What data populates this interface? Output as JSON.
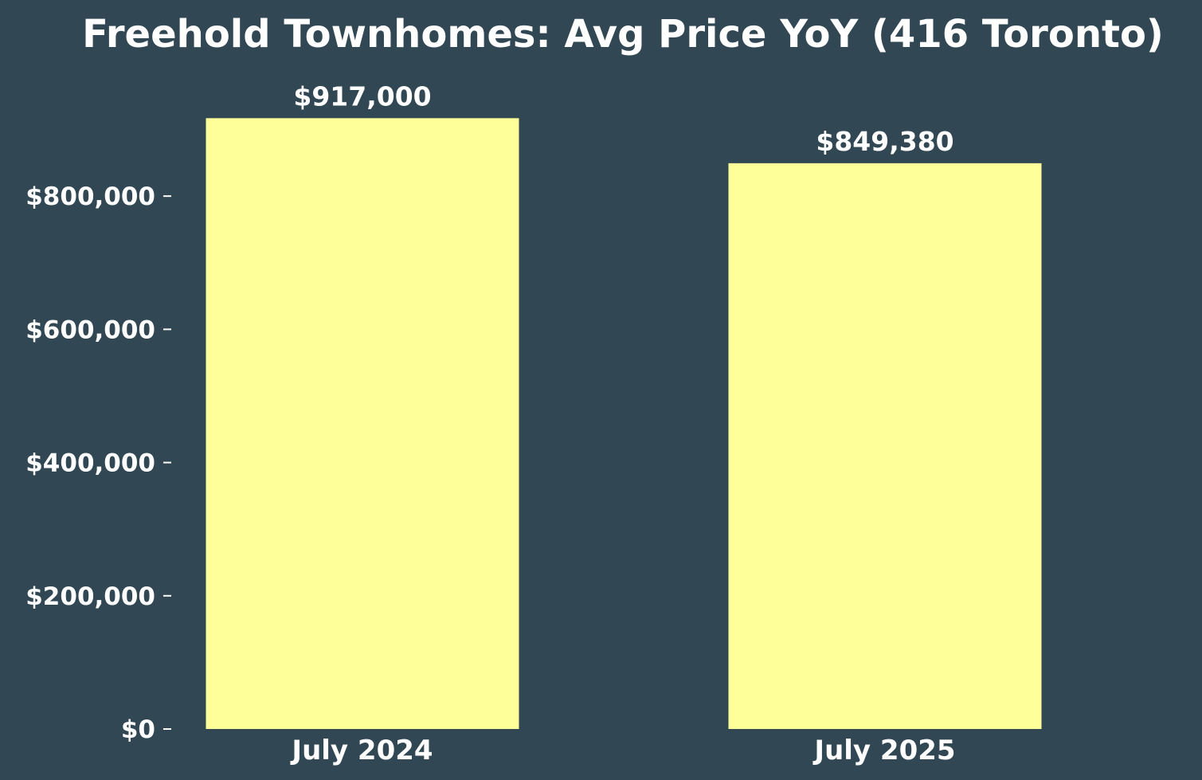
{
  "chart_data": {
    "type": "bar",
    "title": "Freehold Townhomes: Avg Price YoY (416 Toronto)",
    "categories": [
      "July 2024",
      "July 2025"
    ],
    "values": [
      917000,
      849380
    ],
    "value_labels": [
      "$917,000",
      "$849,380"
    ],
    "yticks": [
      0,
      200000,
      400000,
      600000,
      800000
    ],
    "ytick_labels": [
      "$0",
      "$200,000",
      "$400,000",
      "$600,000",
      "$800,000"
    ],
    "ylim": [
      0,
      962850
    ],
    "xlabel": "",
    "ylabel": "",
    "grid": false,
    "legend": "none",
    "colors": {
      "background": "#314753",
      "bar": "#ffff99",
      "text": "#ffffff"
    }
  }
}
